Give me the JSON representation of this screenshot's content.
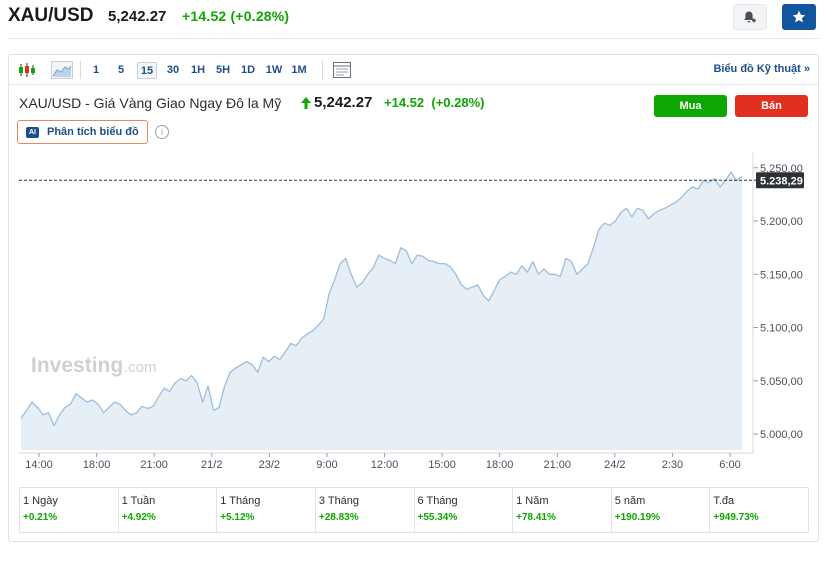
{
  "header": {
    "symbol": "XAU/USD",
    "price": "5,242.27",
    "change": "+14.52 (+0.28%)"
  },
  "toolbar": {
    "intervals": [
      "1",
      "5",
      "15",
      "30",
      "1H",
      "5H",
      "1D",
      "1W",
      "1M"
    ],
    "active_interval": "15",
    "tech_link": "Biểu đồ Kỹ thuật »"
  },
  "chart_header": {
    "title": "XAU/USD - Giá Vàng Giao Ngay Đô la Mỹ",
    "price": "5,242.27",
    "change": "+14.52",
    "change_pct": "(+0.28%)",
    "buy_label": "Mua",
    "sell_label": "Bán",
    "ai_badge": "AI",
    "ai_label": "Phân tích biểu đồ",
    "info_glyph": "i"
  },
  "watermark": {
    "brand": "Investing",
    "suffix": ".com"
  },
  "colors": {
    "line": "#9dbedc",
    "area": "#e6eef6",
    "up": "#0ea600",
    "down": "#e1301e",
    "accent": "#1f4f8a",
    "star_button": "#1256a0"
  },
  "icons": {
    "alert": "bell-plus-icon",
    "watchlist": "star-icon",
    "candles": "candlestick-icon",
    "area": "area-chart-icon",
    "layout": "layout-icon",
    "price_up": "up-arrow-icon",
    "info": "info-icon"
  },
  "chart_data": {
    "type": "area",
    "title": "",
    "xlabel": "",
    "ylabel": "",
    "ylim": [
      4985,
      5262
    ],
    "y_ticks": [
      {
        "value": 5000,
        "label": "5.000,00"
      },
      {
        "value": 5050,
        "label": "5.050,00"
      },
      {
        "value": 5100,
        "label": "5.100,00"
      },
      {
        "value": 5150,
        "label": "5.150,00"
      },
      {
        "value": 5200,
        "label": "5.200,00"
      },
      {
        "value": 5250,
        "label": "5.250,00"
      }
    ],
    "x_ticks": [
      "14:00",
      "18:00",
      "21:00",
      "21/2",
      "23/2",
      "9:00",
      "12:00",
      "15:00",
      "18:00",
      "21:00",
      "24/2",
      "2:30",
      "6:00"
    ],
    "current_value": 5238.29,
    "current_label": "5.238,29",
    "grid": false,
    "legend": "none",
    "series": [
      {
        "values": [
          5015,
          5022,
          5030,
          5025,
          5018,
          5020,
          5008,
          5018,
          5025,
          5028,
          5038,
          5034,
          5030,
          5032,
          5028,
          5020,
          5025,
          5030,
          5028,
          5022,
          5018,
          5020,
          5026,
          5024,
          5026,
          5035,
          5043,
          5040,
          5048,
          5052,
          5050,
          5055,
          5048,
          5030,
          5045,
          5022,
          5025,
          5045,
          5058,
          5062,
          5065,
          5068,
          5065,
          5058,
          5072,
          5068,
          5073,
          5070,
          5077,
          5085,
          5083,
          5090,
          5094,
          5097,
          5102,
          5108,
          5132,
          5145,
          5160,
          5165,
          5150,
          5138,
          5142,
          5150,
          5156,
          5168,
          5165,
          5163,
          5160,
          5175,
          5172,
          5160,
          5168,
          5167,
          5163,
          5162,
          5160,
          5160,
          5157,
          5150,
          5140,
          5136,
          5138,
          5140,
          5130,
          5125,
          5135,
          5145,
          5148,
          5152,
          5150,
          5158,
          5152,
          5162,
          5150,
          5155,
          5150,
          5150,
          5148,
          5165,
          5162,
          5150,
          5155,
          5160,
          5175,
          5192,
          5198,
          5196,
          5200,
          5208,
          5212,
          5204,
          5212,
          5210,
          5202,
          5207,
          5210,
          5212,
          5215,
          5218,
          5222,
          5228,
          5232,
          5230,
          5238,
          5236,
          5240,
          5232,
          5238,
          5246,
          5238,
          5242
        ]
      }
    ]
  },
  "performance": [
    {
      "label": "1 Ngày",
      "value": "+0.21%"
    },
    {
      "label": "1 Tuần",
      "value": "+4.92%"
    },
    {
      "label": "1 Tháng",
      "value": "+5.12%"
    },
    {
      "label": "3 Tháng",
      "value": "+28.83%"
    },
    {
      "label": "6 Tháng",
      "value": "+55.34%"
    },
    {
      "label": "1 Năm",
      "value": "+78.41%"
    },
    {
      "label": "5 năm",
      "value": "+190.19%"
    },
    {
      "label": "T.đa",
      "value": "+949.73%"
    }
  ]
}
